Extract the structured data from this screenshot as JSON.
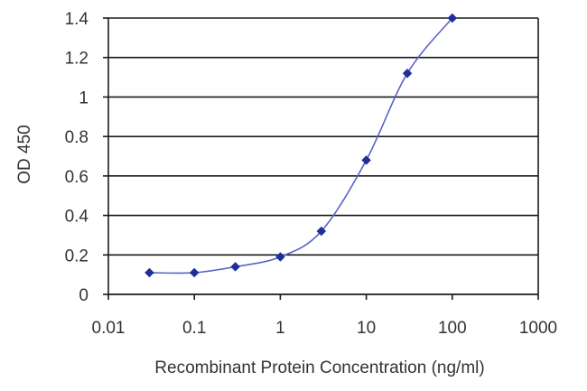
{
  "chart_data": {
    "type": "scatter",
    "title": "",
    "xlabel": "Recombinant Protein Concentration (ng/ml)",
    "ylabel": "OD 450",
    "x_scale": "log",
    "xlim": [
      0.01,
      1000
    ],
    "ylim": [
      0,
      1.4
    ],
    "x_ticks": [
      0.01,
      0.1,
      1,
      10,
      100,
      1000
    ],
    "x_tick_labels": [
      "0.01",
      "0.1",
      "1",
      "10",
      "100",
      "1000"
    ],
    "y_ticks": [
      0,
      0.2,
      0.4,
      0.6,
      0.8,
      1,
      1.2,
      1.4
    ],
    "y_tick_labels": [
      "0",
      "0.2",
      "0.4",
      "0.6",
      "0.8",
      "1",
      "1.2",
      "1.4"
    ],
    "grid": "horizontal",
    "legend": "none",
    "fitted_curve": true,
    "series": [
      {
        "color": "#1f2f9a",
        "marker": "diamond",
        "x": [
          0.03,
          0.1,
          0.3,
          1,
          3,
          10,
          30,
          100
        ],
        "y": [
          0.11,
          0.11,
          0.14,
          0.19,
          0.32,
          0.68,
          1.12,
          1.4
        ]
      }
    ]
  }
}
